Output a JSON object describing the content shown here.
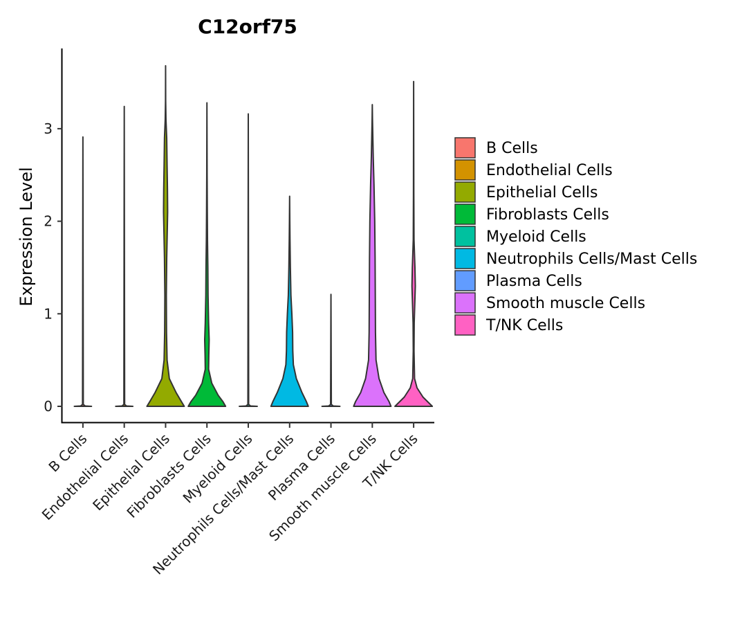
{
  "chart_data": {
    "type": "violin",
    "title": "C12orf75",
    "xlabel": "",
    "ylabel": "Expression Level",
    "ylim": [
      -0.18,
      3.85
    ],
    "yticks": [
      0,
      1,
      2,
      3
    ],
    "categories": [
      "B Cells",
      "Endothelial Cells",
      "Epithelial Cells",
      "Fibroblasts Cells",
      "Myeloid Cells",
      "Neutrophils Cells/Mast Cells",
      "Plasma Cells",
      "Smooth muscle Cells",
      "T/NK Cells"
    ],
    "colors": [
      "#F8766D",
      "#D39200",
      "#93AA00",
      "#00BA38",
      "#00C19F",
      "#00B9E3",
      "#619CFF",
      "#DB72FB",
      "#FF61C3"
    ],
    "max_values": [
      2.91,
      3.24,
      3.68,
      3.28,
      3.16,
      2.27,
      1.21,
      3.26,
      3.51
    ],
    "violins": [
      {
        "name": "B Cells",
        "profile": [
          [
            0,
            0.46
          ],
          [
            0.004,
            0.12
          ],
          [
            0.02,
            0.02
          ],
          [
            2.91,
            0.0
          ]
        ]
      },
      {
        "name": "Endothelial Cells",
        "profile": [
          [
            0,
            0.46
          ],
          [
            0.004,
            0.12
          ],
          [
            0.02,
            0.02
          ],
          [
            3.24,
            0.0
          ]
        ]
      },
      {
        "name": "Epithelial Cells",
        "profile": [
          [
            0,
            1.0
          ],
          [
            0.05,
            0.85
          ],
          [
            0.15,
            0.56
          ],
          [
            0.3,
            0.2
          ],
          [
            0.5,
            0.08
          ],
          [
            0.8,
            0.05
          ],
          [
            1.2,
            0.04
          ],
          [
            1.6,
            0.06
          ],
          [
            1.9,
            0.09
          ],
          [
            2.1,
            0.11
          ],
          [
            2.35,
            0.1
          ],
          [
            2.6,
            0.08
          ],
          [
            2.9,
            0.06
          ],
          [
            3.1,
            0.02
          ],
          [
            3.3,
            0.005
          ],
          [
            3.68,
            0.0
          ]
        ]
      },
      {
        "name": "Fibroblasts Cells",
        "profile": [
          [
            0,
            1.0
          ],
          [
            0.05,
            0.86
          ],
          [
            0.12,
            0.6
          ],
          [
            0.25,
            0.26
          ],
          [
            0.4,
            0.09
          ],
          [
            0.55,
            0.1
          ],
          [
            0.72,
            0.12
          ],
          [
            0.9,
            0.09
          ],
          [
            1.2,
            0.06
          ],
          [
            1.5,
            0.05
          ],
          [
            1.8,
            0.03
          ],
          [
            2.1,
            0.02
          ],
          [
            2.5,
            0.01
          ],
          [
            3.28,
            0.0
          ]
        ]
      },
      {
        "name": "Myeloid Cells",
        "profile": [
          [
            0,
            0.48
          ],
          [
            0.004,
            0.12
          ],
          [
            0.02,
            0.02
          ],
          [
            3.16,
            0.0
          ]
        ]
      },
      {
        "name": "Neutrophils Cells/Mast Cells",
        "profile": [
          [
            0,
            1.0
          ],
          [
            0.05,
            0.9
          ],
          [
            0.15,
            0.66
          ],
          [
            0.3,
            0.36
          ],
          [
            0.45,
            0.2
          ],
          [
            0.6,
            0.17
          ],
          [
            0.8,
            0.16
          ],
          [
            1.0,
            0.12
          ],
          [
            1.2,
            0.07
          ],
          [
            1.5,
            0.04
          ],
          [
            1.8,
            0.02
          ],
          [
            2.0,
            0.01
          ],
          [
            2.27,
            0.0
          ]
        ]
      },
      {
        "name": "Plasma Cells",
        "profile": [
          [
            0,
            0.48
          ],
          [
            0.004,
            0.12
          ],
          [
            0.02,
            0.02
          ],
          [
            1.21,
            0.0
          ]
        ]
      },
      {
        "name": "Smooth muscle Cells",
        "profile": [
          [
            0,
            1.0
          ],
          [
            0.05,
            0.9
          ],
          [
            0.15,
            0.62
          ],
          [
            0.3,
            0.36
          ],
          [
            0.5,
            0.2
          ],
          [
            0.8,
            0.17
          ],
          [
            1.2,
            0.16
          ],
          [
            1.6,
            0.15
          ],
          [
            2.0,
            0.13
          ],
          [
            2.4,
            0.09
          ],
          [
            2.7,
            0.05
          ],
          [
            2.9,
            0.03
          ],
          [
            3.1,
            0.01
          ],
          [
            3.26,
            0.0
          ]
        ]
      },
      {
        "name": "T/NK Cells",
        "profile": [
          [
            0,
            1.0
          ],
          [
            0.03,
            0.85
          ],
          [
            0.1,
            0.5
          ],
          [
            0.2,
            0.18
          ],
          [
            0.3,
            0.05
          ],
          [
            0.6,
            0.02
          ],
          [
            0.9,
            0.03
          ],
          [
            1.1,
            0.06
          ],
          [
            1.3,
            0.09
          ],
          [
            1.5,
            0.07
          ],
          [
            1.8,
            0.02
          ],
          [
            2.3,
            0.01
          ],
          [
            3.51,
            0.0
          ]
        ]
      }
    ],
    "legend": {
      "position": "right",
      "entries": [
        "B Cells",
        "Endothelial Cells",
        "Epithelial Cells",
        "Fibroblasts Cells",
        "Myeloid Cells",
        "Neutrophils Cells/Mast Cells",
        "Plasma Cells",
        "Smooth muscle Cells",
        "T/NK Cells"
      ]
    },
    "grid": false
  }
}
